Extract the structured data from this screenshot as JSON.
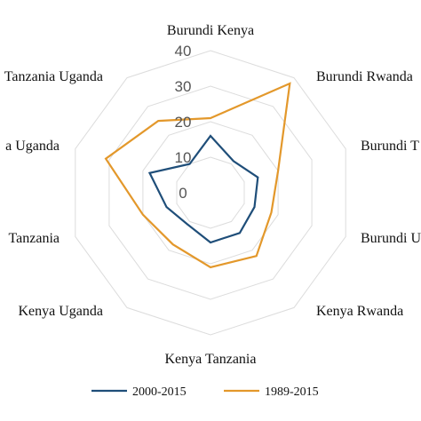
{
  "chart_data": {
    "type": "radar",
    "categories": [
      "Burundi Kenya",
      "Burundi Rwanda",
      "Burundi Tanzania",
      "Burundi Uganda",
      "Kenya Rwanda",
      "Kenya Tanzania",
      "Kenya Uganda",
      "Rwanda Tanzania",
      "Rwanda Uganda",
      "Tanzania Uganda"
    ],
    "category_labels_visible": [
      "Burundi Kenya",
      "Burundi Rwanda",
      "Burundi T",
      "Burundi U",
      "Kenya Rwanda",
      "Kenya Tanzania",
      "Kenya Uganda",
      "Tanzania",
      "a Uganda",
      "Tanzania Uganda"
    ],
    "rlim": [
      0,
      40
    ],
    "ticks": [
      "0",
      "10",
      "20",
      "30",
      "40"
    ],
    "grid": true,
    "legend_position": "bottom",
    "series": [
      {
        "name": "2000-2015",
        "color": "#1f4e79",
        "values": [
          16,
          11,
          14,
          13,
          14,
          14,
          11,
          13,
          18,
          10
        ]
      },
      {
        "name": "1989-2015",
        "color": "#e3982b",
        "values": [
          21,
          38,
          20,
          18,
          22,
          21,
          18,
          20,
          31,
          25
        ]
      }
    ]
  }
}
